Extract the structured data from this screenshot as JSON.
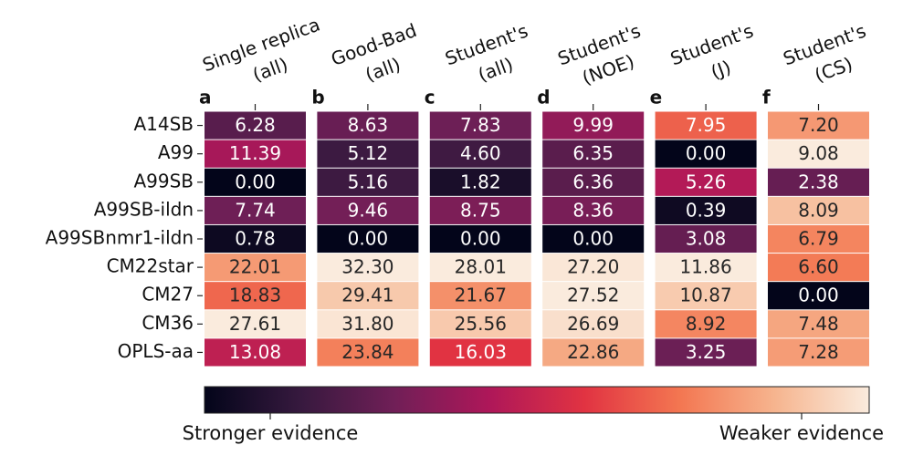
{
  "chart_data": {
    "type": "heatmap",
    "rows": [
      "A14SB",
      "A99",
      "A99SB",
      "A99SB-ildn",
      "A99SBnmr1-ildn",
      "CM22star",
      "CM27",
      "CM36",
      "OPLS-aa"
    ],
    "colormap": [
      "#03051a",
      "#36193e",
      "#701f57",
      "#ae1759",
      "#e13342",
      "#f37651",
      "#f6b48e",
      "#faebdd"
    ],
    "colorbar": {
      "left_label": "Stronger evidence",
      "right_label": "Weaker evidence"
    },
    "panels": [
      {
        "letter": "a",
        "title": [
          "Single replica",
          "(all)"
        ],
        "values": [
          6.28,
          11.39,
          0.0,
          7.74,
          0.78,
          22.01,
          18.83,
          27.61,
          13.08
        ],
        "value_labels": [
          "6.28",
          "11.39",
          "0.00",
          "7.74",
          "0.78",
          "22.01",
          "18.83",
          "27.61",
          "13.08"
        ]
      },
      {
        "letter": "b",
        "title": [
          "Good-Bad",
          "(all)"
        ],
        "values": [
          8.63,
          5.12,
          5.16,
          9.46,
          0.0,
          32.3,
          29.41,
          31.8,
          23.84
        ],
        "value_labels": [
          "8.63",
          "5.12",
          "5.16",
          "9.46",
          "0.00",
          "32.30",
          "29.41",
          "31.80",
          "23.84"
        ]
      },
      {
        "letter": "c",
        "title": [
          "Student's",
          "(all)"
        ],
        "values": [
          7.83,
          4.6,
          1.82,
          8.75,
          0.0,
          28.01,
          21.67,
          25.56,
          16.03
        ],
        "value_labels": [
          "7.83",
          "4.60",
          "1.82",
          "8.75",
          "0.00",
          "28.01",
          "21.67",
          "25.56",
          "16.03"
        ]
      },
      {
        "letter": "d",
        "title": [
          "Student's",
          "(NOE)"
        ],
        "values": [
          9.99,
          6.35,
          6.36,
          8.36,
          0.0,
          27.2,
          27.52,
          26.69,
          22.86
        ],
        "value_labels": [
          "9.99",
          "6.35",
          "6.36",
          "8.36",
          "0.00",
          "27.20",
          "27.52",
          "26.69",
          "22.86"
        ]
      },
      {
        "letter": "e",
        "title": [
          "Student's",
          "(J)"
        ],
        "values": [
          7.95,
          0.0,
          5.26,
          0.39,
          3.08,
          11.86,
          10.87,
          8.92,
          3.25
        ],
        "value_labels": [
          "7.95",
          "0.00",
          "5.26",
          "0.39",
          "3.08",
          "11.86",
          "10.87",
          "8.92",
          "3.25"
        ]
      },
      {
        "letter": "f",
        "title": [
          "Student's",
          "(CS)"
        ],
        "values": [
          7.2,
          9.08,
          2.38,
          8.09,
          6.79,
          6.6,
          0.0,
          7.48,
          7.28
        ],
        "value_labels": [
          "7.20",
          "9.08",
          "2.38",
          "8.09",
          "6.79",
          "6.60",
          "0.00",
          "7.48",
          "7.28"
        ]
      }
    ]
  }
}
